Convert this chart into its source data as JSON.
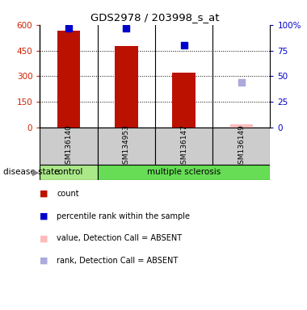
{
  "title": "GDS2978 / 203998_s_at",
  "samples": [
    "GSM136140",
    "GSM134953",
    "GSM136147",
    "GSM136149"
  ],
  "bar_values": [
    565,
    475,
    320,
    0
  ],
  "bar_color": "#bb1100",
  "absent_bar_value": 18,
  "absent_bar_color": "#ffbbbb",
  "percentile_present": [
    97,
    97,
    80,
    null
  ],
  "percentile_absent_rank": [
    null,
    null,
    null,
    44
  ],
  "percentile_present_color": "#0000cc",
  "percentile_absent_color": "#aaaadd",
  "ylim_left": [
    0,
    600
  ],
  "ylim_right": [
    0,
    100
  ],
  "yticks_left": [
    0,
    150,
    300,
    450,
    600
  ],
  "yticks_right": [
    0,
    25,
    50,
    75,
    100
  ],
  "ytick_labels_left": [
    "0",
    "150",
    "300",
    "450",
    "600"
  ],
  "ytick_labels_right": [
    "0",
    "25",
    "50",
    "75",
    "100%"
  ],
  "left_axis_color": "#cc2200",
  "right_axis_color": "#0000cc",
  "control_color": "#aae888",
  "ms_color": "#66dd55",
  "sample_bg_color": "#cccccc",
  "legend_count_color": "#bb1100",
  "legend_percentile_color": "#0000cc",
  "legend_value_absent_color": "#ffbbbb",
  "legend_rank_absent_color": "#aaaadd",
  "bar_width": 0.4,
  "grid_lines": [
    150,
    300,
    450
  ]
}
